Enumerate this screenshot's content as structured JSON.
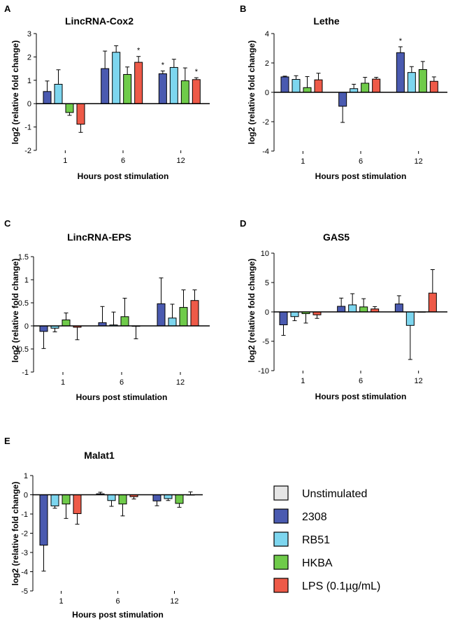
{
  "legend": [
    {
      "name": "Unstimulated",
      "color": "#e6e6e6"
    },
    {
      "name": "2308",
      "color": "#4a5ab0"
    },
    {
      "name": "RB51",
      "color": "#7dd6ef"
    },
    {
      "name": "HKBA",
      "color": "#6fcb4a"
    },
    {
      "name": "LPS (0.1µg/mL)",
      "color": "#ee5a48"
    }
  ],
  "chart_data": [
    {
      "panel": "A",
      "type": "bar",
      "title": "LincRNA-Cox2",
      "xlabel": "Hours post stimulation",
      "ylabel": "log2 (relative fold change)",
      "categories": [
        "1",
        "6",
        "12"
      ],
      "ylim": [
        -2,
        3
      ],
      "yticks": [
        -2,
        -1,
        0,
        1,
        2,
        3
      ],
      "series": [
        {
          "name": "2308",
          "values": [
            0.52,
            1.5,
            1.28
          ],
          "errors": [
            0.45,
            0.75,
            0.12
          ],
          "sig": [
            "",
            "",
            "*"
          ]
        },
        {
          "name": "RB51",
          "values": [
            0.83,
            2.2,
            1.55
          ],
          "errors": [
            0.62,
            0.28,
            0.35
          ],
          "sig": [
            "",
            "",
            ""
          ]
        },
        {
          "name": "HKBA",
          "values": [
            -0.38,
            1.25,
            0.98
          ],
          "errors": [
            0.12,
            0.32,
            0.55
          ],
          "sig": [
            "",
            "",
            ""
          ]
        },
        {
          "name": "LPS (0.1µg/mL)",
          "values": [
            -0.88,
            1.77,
            1.03
          ],
          "errors": [
            0.35,
            0.25,
            0.08
          ],
          "sig": [
            "",
            "*",
            "*"
          ]
        }
      ]
    },
    {
      "panel": "B",
      "type": "bar",
      "title": "Lethe",
      "xlabel": "Hours post stimulation",
      "ylabel": "log2 (relative fold change)",
      "categories": [
        "1",
        "6",
        "12"
      ],
      "ylim": [
        -4,
        4
      ],
      "yticks": [
        -4,
        -2,
        0,
        2,
        4
      ],
      "series": [
        {
          "name": "2308",
          "values": [
            1.05,
            -0.95,
            2.7
          ],
          "errors": [
            0.05,
            1.1,
            0.4
          ],
          "sig": [
            "",
            "",
            "*"
          ]
        },
        {
          "name": "RB51",
          "values": [
            0.88,
            0.25,
            1.35
          ],
          "errors": [
            0.25,
            0.3,
            0.4
          ],
          "sig": [
            "",
            "",
            ""
          ]
        },
        {
          "name": "HKBA",
          "values": [
            0.32,
            0.62,
            1.55
          ],
          "errors": [
            0.75,
            0.4,
            0.55
          ],
          "sig": [
            "",
            "",
            ""
          ]
        },
        {
          "name": "LPS (0.1µg/mL)",
          "values": [
            0.85,
            0.9,
            0.75
          ],
          "errors": [
            0.45,
            0.12,
            0.3
          ],
          "sig": [
            "",
            "",
            ""
          ]
        }
      ]
    },
    {
      "panel": "C",
      "type": "bar",
      "title": "LincRNA-EPS",
      "xlabel": "Hours post stimulation",
      "ylabel": "log2 (relative fold change)",
      "categories": [
        "1",
        "6",
        "12"
      ],
      "ylim": [
        -1,
        1.5
      ],
      "yticks": [
        -1.0,
        -0.5,
        0.0,
        0.5,
        1.0,
        1.5
      ],
      "series": [
        {
          "name": "2308",
          "values": [
            -0.12,
            0.07,
            0.48
          ],
          "errors": [
            0.37,
            0.35,
            0.56
          ],
          "sig": [
            "",
            "",
            ""
          ]
        },
        {
          "name": "RB51",
          "values": [
            -0.05,
            0.02,
            0.17
          ],
          "errors": [
            0.08,
            0.28,
            0.3
          ],
          "sig": [
            "",
            "",
            ""
          ]
        },
        {
          "name": "HKBA",
          "values": [
            0.13,
            0.2,
            0.4
          ],
          "errors": [
            0.15,
            0.4,
            0.38
          ],
          "sig": [
            "",
            "",
            ""
          ]
        },
        {
          "name": "LPS (0.1µg/mL)",
          "values": [
            -0.03,
            -0.01,
            0.55
          ],
          "errors": [
            0.27,
            0.27,
            0.23
          ],
          "sig": [
            "",
            "",
            ""
          ]
        }
      ]
    },
    {
      "panel": "D",
      "type": "bar",
      "title": "GAS5",
      "xlabel": "Hours post stimulation",
      "ylabel": "log2 (relative fold change)",
      "categories": [
        "1",
        "6",
        "12"
      ],
      "ylim": [
        -10,
        10
      ],
      "yticks": [
        -10,
        -5,
        0,
        5,
        10
      ],
      "series": [
        {
          "name": "2308",
          "values": [
            -2.2,
            0.95,
            1.35
          ],
          "errors": [
            1.8,
            1.4,
            1.4
          ],
          "sig": [
            "",
            "",
            ""
          ]
        },
        {
          "name": "RB51",
          "values": [
            -0.8,
            1.2,
            -2.3
          ],
          "errors": [
            0.7,
            1.9,
            5.8
          ],
          "sig": [
            "",
            "",
            ""
          ]
        },
        {
          "name": "HKBA",
          "values": [
            -0.3,
            0.85,
            0.0
          ],
          "errors": [
            1.6,
            1.4,
            0.0
          ],
          "sig": [
            "",
            "",
            ""
          ]
        },
        {
          "name": "LPS (0.1µg/mL)",
          "values": [
            -0.5,
            0.5,
            3.2
          ],
          "errors": [
            0.6,
            0.4,
            4.0
          ],
          "sig": [
            "",
            "",
            ""
          ]
        }
      ]
    },
    {
      "panel": "E",
      "type": "bar",
      "title": "Malat1",
      "xlabel": "Hours post stimulation",
      "ylabel": "log2 (relative fold change)",
      "categories": [
        "1",
        "6",
        "12"
      ],
      "ylim": [
        -5,
        1
      ],
      "yticks": [
        -5,
        -4,
        -3,
        -2,
        -1,
        0,
        1
      ],
      "series": [
        {
          "name": "2308",
          "values": [
            -2.62,
            0.05,
            -0.32
          ],
          "errors": [
            1.35,
            0.08,
            0.25
          ],
          "sig": [
            "",
            "",
            ""
          ]
        },
        {
          "name": "RB51",
          "values": [
            -0.58,
            -0.3,
            -0.2
          ],
          "errors": [
            0.12,
            0.3,
            0.1
          ],
          "sig": [
            "",
            "",
            ""
          ]
        },
        {
          "name": "HKBA",
          "values": [
            -0.48,
            -0.48,
            -0.45
          ],
          "errors": [
            0.75,
            0.62,
            0.2
          ],
          "sig": [
            "",
            "",
            ""
          ]
        },
        {
          "name": "LPS (0.1µg/mL)",
          "values": [
            -0.98,
            -0.1,
            0.0
          ],
          "errors": [
            0.55,
            0.12,
            0.15
          ],
          "sig": [
            "",
            "",
            ""
          ]
        }
      ]
    }
  ]
}
